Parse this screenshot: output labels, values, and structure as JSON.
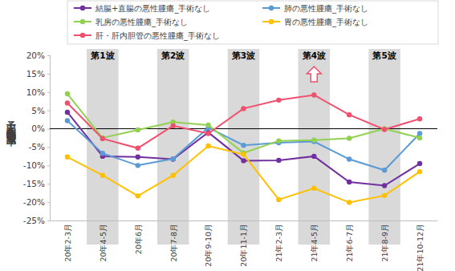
{
  "chart_data": {
    "type": "line",
    "y_label": "予定入院症例数増減率",
    "categories": [
      "20年2-3月",
      "20年4-5月",
      "20年6月",
      "20年7-8月",
      "20年9-10月",
      "20年11-1月",
      "21年2-3月",
      "21年4-5月",
      "21年6-7月",
      "21年8-9月",
      "21年10-12月"
    ],
    "series": [
      {
        "name": "結腸+直腸の悪性腫瘍_手術なし",
        "color": "#7030a0",
        "values": [
          4.5,
          -7.5,
          -7.7,
          -8.3,
          -1.0,
          -8.7,
          -8.6,
          -7.5,
          -14.5,
          -15.5,
          -9.5
        ]
      },
      {
        "name": "肺の悪性腫瘍_手術なし",
        "color": "#5b9bd5",
        "values": [
          2.2,
          -6.7,
          -10.0,
          -8.2,
          0.3,
          -4.5,
          -3.8,
          -3.5,
          -8.3,
          -11.3,
          -1.3
        ]
      },
      {
        "name": "乳房の悪性腫瘍_手術なし",
        "color": "#92d050",
        "values": [
          9.5,
          -2.5,
          -0.3,
          1.8,
          1.0,
          -6.6,
          -3.3,
          -3.1,
          -2.6,
          0.0,
          -2.5
        ]
      },
      {
        "name": "胃の悪性腫瘍_手術なし",
        "color": "#ffc000",
        "values": [
          -7.7,
          -12.7,
          -18.3,
          -12.7,
          -4.7,
          -7.0,
          -19.3,
          -16.2,
          -20.1,
          -18.2,
          -11.7
        ]
      },
      {
        "name": "肝・肝内胆管の悪性腫瘍_手術なし",
        "color": "#f0506e",
        "values": [
          7.0,
          -2.7,
          -5.3,
          0.8,
          -1.3,
          5.5,
          7.8,
          9.2,
          3.8,
          -0.2,
          2.7
        ]
      }
    ],
    "ylim": [
      -25,
      20
    ],
    "yticks": [
      {
        "value": -25,
        "label": "-25%"
      },
      {
        "value": -20,
        "label": "-20%"
      },
      {
        "value": -15,
        "label": "-15%"
      },
      {
        "value": -10,
        "label": "-10%"
      },
      {
        "value": -5,
        "label": "-5%"
      },
      {
        "value": 0,
        "label": "0%"
      },
      {
        "value": 5,
        "label": "5%"
      },
      {
        "value": 10,
        "label": "10%"
      },
      {
        "value": 15,
        "label": "15%"
      },
      {
        "value": 20,
        "label": "20%"
      }
    ],
    "annotations": [
      {
        "text": "第1波",
        "category": "20年4-5月"
      },
      {
        "text": "第2波",
        "category": "20年7-8月"
      },
      {
        "text": "第3波",
        "category": "20年11-1月"
      },
      {
        "text": "第4波",
        "category": "21年4-5月"
      },
      {
        "text": "第5波",
        "category": "21年8-9月"
      }
    ],
    "marker": "circle",
    "legend": "top",
    "grid": false
  }
}
